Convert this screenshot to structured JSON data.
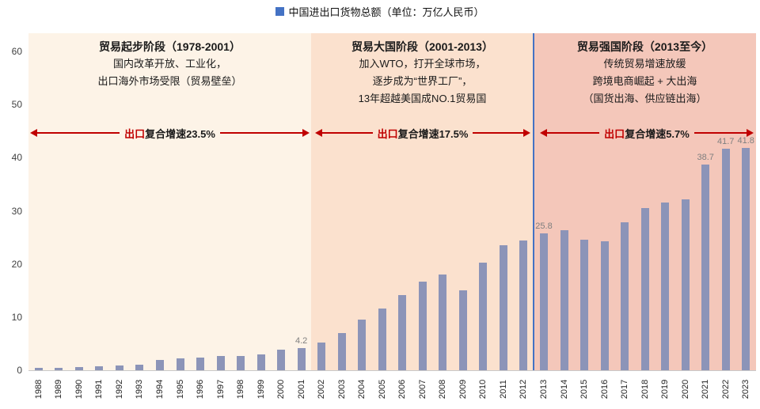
{
  "legend": {
    "label": "中国进出口货物总额（单位：万亿人民币）",
    "marker_color": "#4472c4"
  },
  "accent_colors": {
    "arrow_red": "#c00000",
    "divider_blue": "#4472c4",
    "bar_fill": "#8c94b8"
  },
  "regions": [
    {
      "title": "贸易起步阶段（1978-2001）",
      "lines": [
        "国内改革开放、工业化，",
        "出口海外市场受限（贸易壁垒）"
      ],
      "growth_highlight": "出口",
      "growth_rest": "复合增速23.5%",
      "background": "#fdf3e7",
      "first_year": "1988",
      "last_year": "2001"
    },
    {
      "title": "贸易大国阶段（2001-2013）",
      "lines": [
        "加入WTO，打开全球市场，",
        "逐步成为“世界工厂”，",
        "13年超越美国成NO.1贸易国"
      ],
      "growth_highlight": "出口",
      "growth_rest": "复合增速17.5%",
      "background": "#fbe1ce",
      "first_year": "2002",
      "last_year": "2012"
    },
    {
      "title": "贸易强国阶段（2013至今）",
      "lines": [
        "传统贸易增速放缓",
        "跨境电商崛起 + 大出海",
        "（国货出海、供应链出海）"
      ],
      "growth_highlight": "出口",
      "growth_rest": "复合增速5.7%",
      "background": "#f4c7ba",
      "first_year": "2013",
      "last_year": "2023"
    }
  ],
  "chart_data": {
    "type": "bar",
    "title": "中国进出口货物总额（单位：万亿人民币）",
    "ylabel": "",
    "xlabel": "",
    "ylim": [
      0,
      60
    ],
    "y_ticks": [
      0,
      10,
      20,
      30,
      40,
      50,
      60
    ],
    "grid": false,
    "legend_position": "top-center",
    "categories": [
      "1988",
      "1989",
      "1990",
      "1991",
      "1992",
      "1993",
      "1994",
      "1995",
      "1996",
      "1997",
      "1998",
      "1999",
      "2000",
      "2001",
      "2002",
      "2003",
      "2004",
      "2005",
      "2006",
      "2007",
      "2008",
      "2009",
      "2010",
      "2011",
      "2012",
      "2013",
      "2014",
      "2015",
      "2016",
      "2017",
      "2018",
      "2019",
      "2020",
      "2021",
      "2022",
      "2023"
    ],
    "values": [
      0.4,
      0.4,
      0.6,
      0.7,
      0.9,
      1.1,
      2.0,
      2.3,
      2.4,
      2.7,
      2.7,
      3.0,
      3.9,
      4.2,
      5.2,
      7.0,
      9.6,
      11.6,
      14.1,
      16.7,
      18.0,
      15.1,
      20.2,
      23.6,
      24.4,
      25.8,
      26.4,
      24.6,
      24.3,
      27.8,
      30.5,
      31.5,
      32.2,
      38.7,
      41.7,
      41.8
    ],
    "data_labels": [
      {
        "category": "2001",
        "text": "4.2"
      },
      {
        "category": "2013",
        "text": "25.8"
      },
      {
        "category": "2021",
        "text": "38.7"
      },
      {
        "category": "2022",
        "text": "41.7"
      },
      {
        "category": "2023",
        "text": "41.8"
      }
    ]
  }
}
